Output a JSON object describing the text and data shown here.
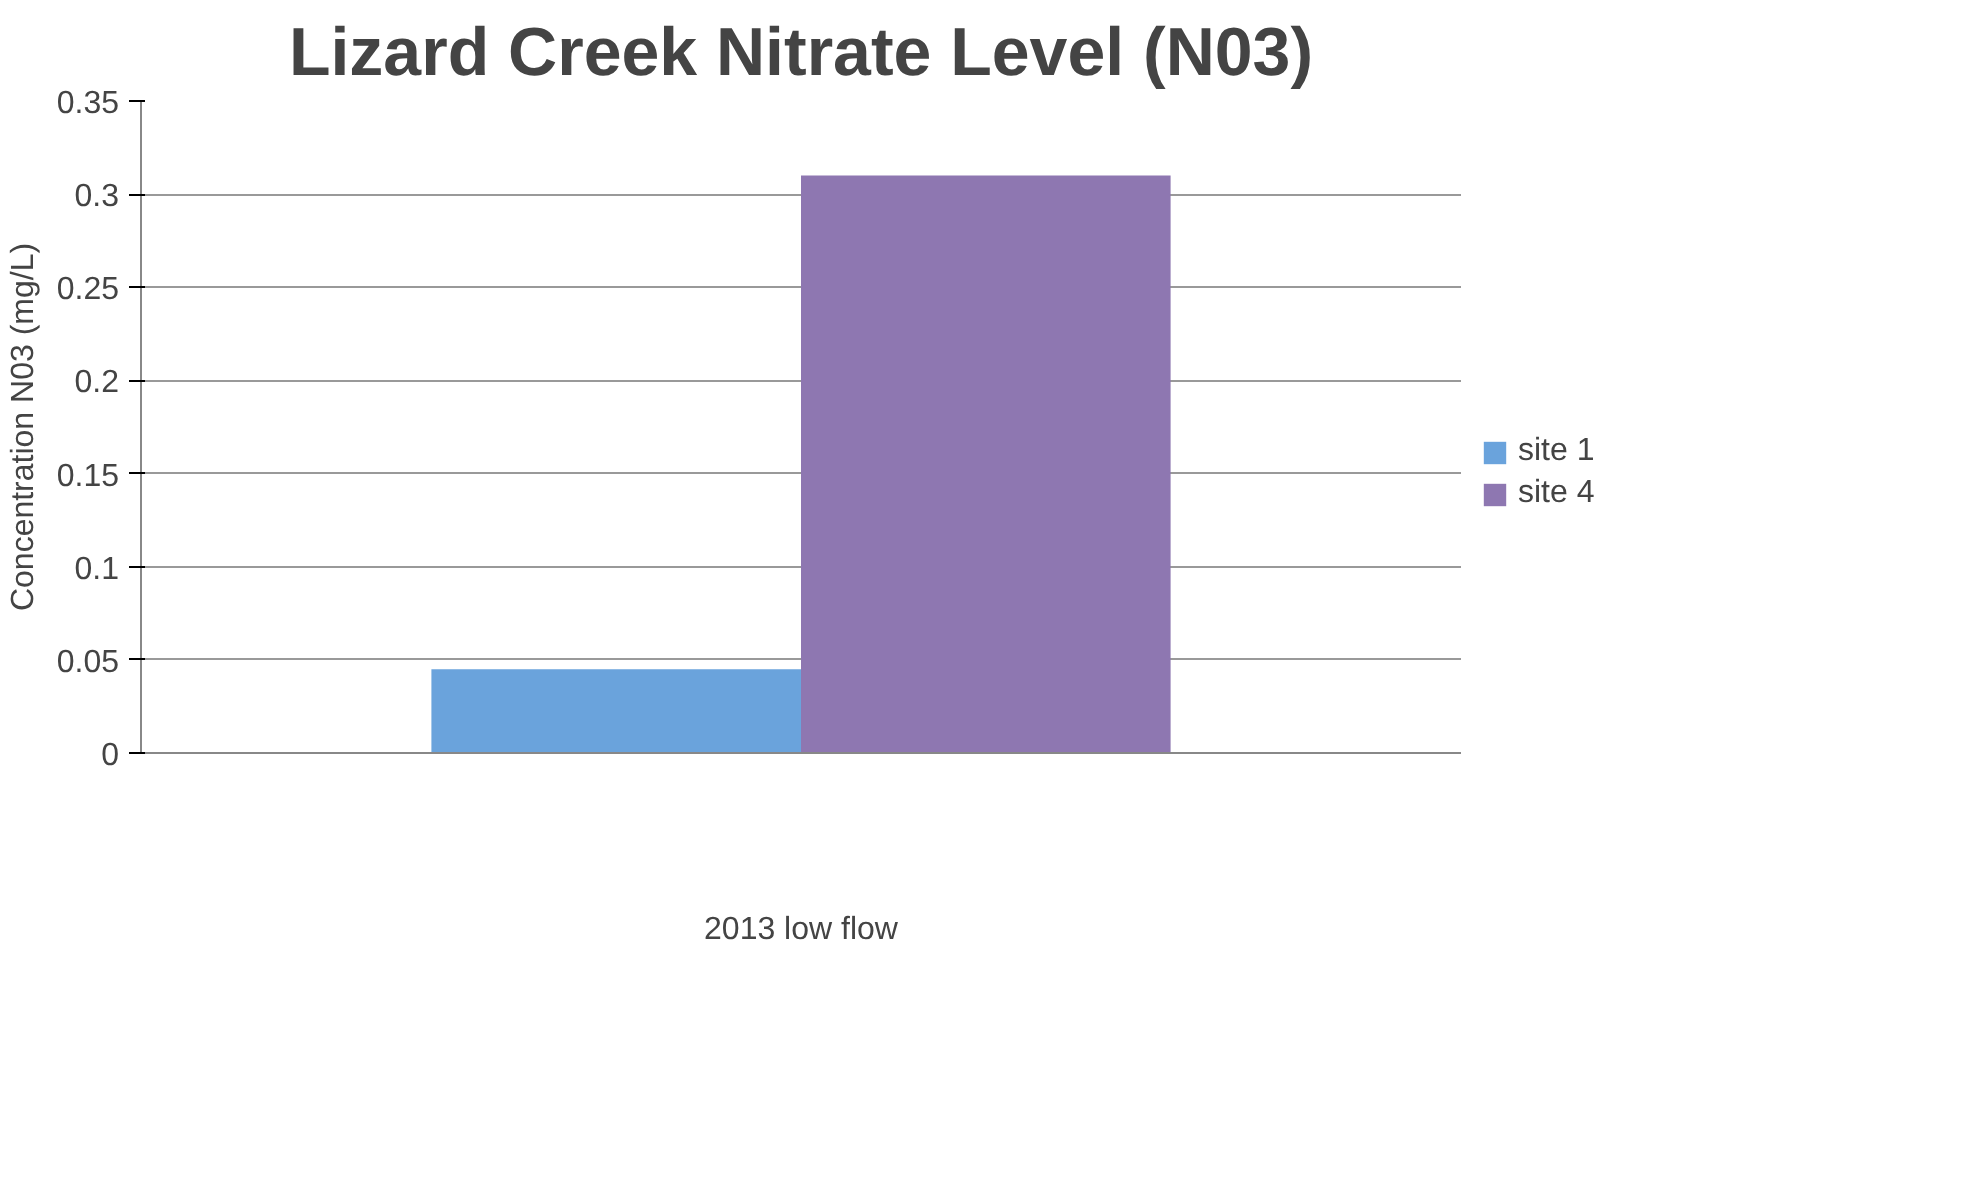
{
  "chart_data": {
    "type": "bar",
    "title": "Lizard Creek Nitrate Level (N03)",
    "xlabel": "2013 low flow",
    "ylabel": "Concentration N03 (mg/L)",
    "categories": [
      null
    ],
    "series": [
      {
        "name": "site 1",
        "color": "#6aa3dc",
        "values": [
          0.045
        ]
      },
      {
        "name": "site 4",
        "color": "#8e77b1",
        "values": [
          0.31
        ]
      }
    ],
    "ylim": [
      0,
      0.35
    ],
    "yticks": [
      0,
      0.05,
      0.1,
      0.15,
      0.2,
      0.25,
      0.3,
      0.35
    ],
    "grid": "y",
    "legend": "right"
  }
}
